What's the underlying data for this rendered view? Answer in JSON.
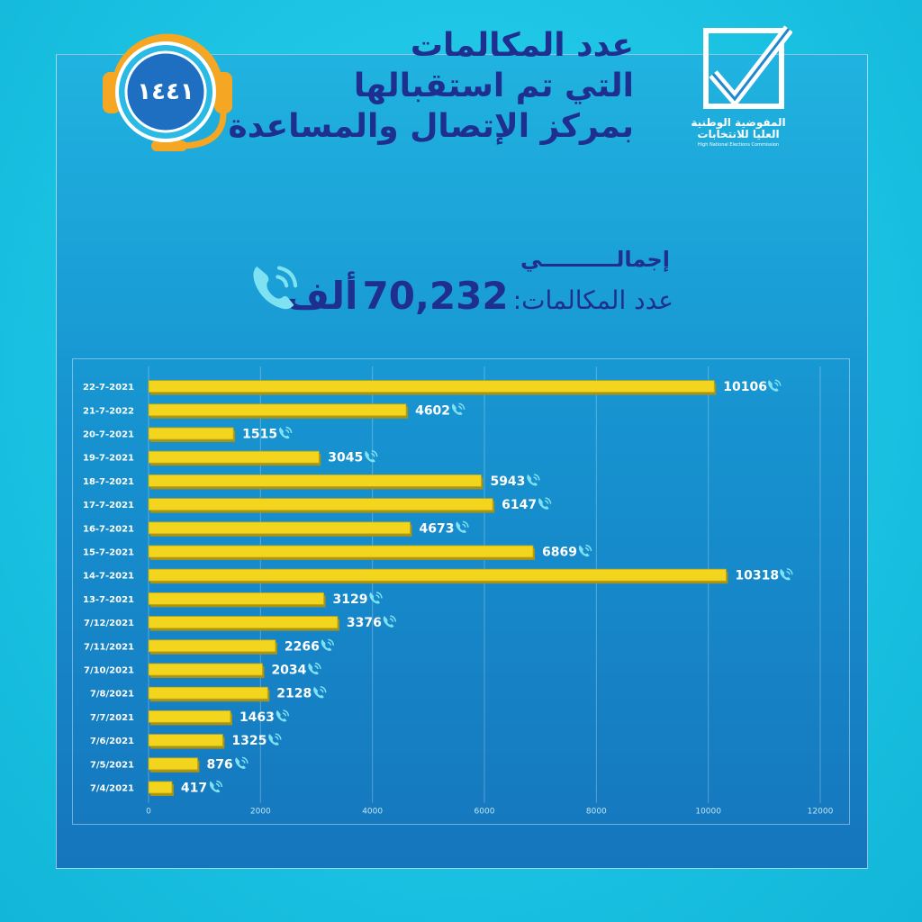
{
  "hotline": {
    "number": "١٤٤١"
  },
  "title": {
    "line1": "عدد المكالمات",
    "line2": "التي تم استقبالها",
    "line3": "بمركز الإتصال والمساعدة"
  },
  "logo": {
    "name_ar_line1": "المفوضية الوطنية",
    "name_ar_line2": "العليا للانتخابات",
    "name_en": "High National Elections Commission"
  },
  "total": {
    "label": "إجمالــــــــــي",
    "prefix": "عدد المكالمات:",
    "value": "70,232",
    "unit": "ألف"
  },
  "colors": {
    "bar": "#f2d51c",
    "bar_shadow": "#a99315",
    "title": "#1f2f8f",
    "phone_icon": "#7fe2f2"
  },
  "chart_data": {
    "type": "bar",
    "orientation": "horizontal",
    "categories": [
      "22-7-2021",
      "21-7-2022",
      "20-7-2021",
      "19-7-2021",
      "18-7-2021",
      "17-7-2021",
      "16-7-2021",
      "15-7-2021",
      "14-7-2021",
      "13-7-2021",
      "7/12/2021",
      "7/11/2021",
      "7/10/2021",
      "7/8/2021",
      "7/7/2021",
      "7/6/2021",
      "7/5/2021",
      "7/4/2021"
    ],
    "values": [
      10106,
      4602,
      1515,
      3045,
      5943,
      6147,
      4673,
      6869,
      10318,
      3129,
      3376,
      2266,
      2034,
      2128,
      1463,
      1325,
      876,
      417
    ],
    "xlim": [
      0,
      12000
    ],
    "xticks": [
      0,
      2000,
      4000,
      6000,
      8000,
      10000,
      12000
    ],
    "grid": true,
    "title": "",
    "xlabel": "",
    "ylabel": ""
  }
}
